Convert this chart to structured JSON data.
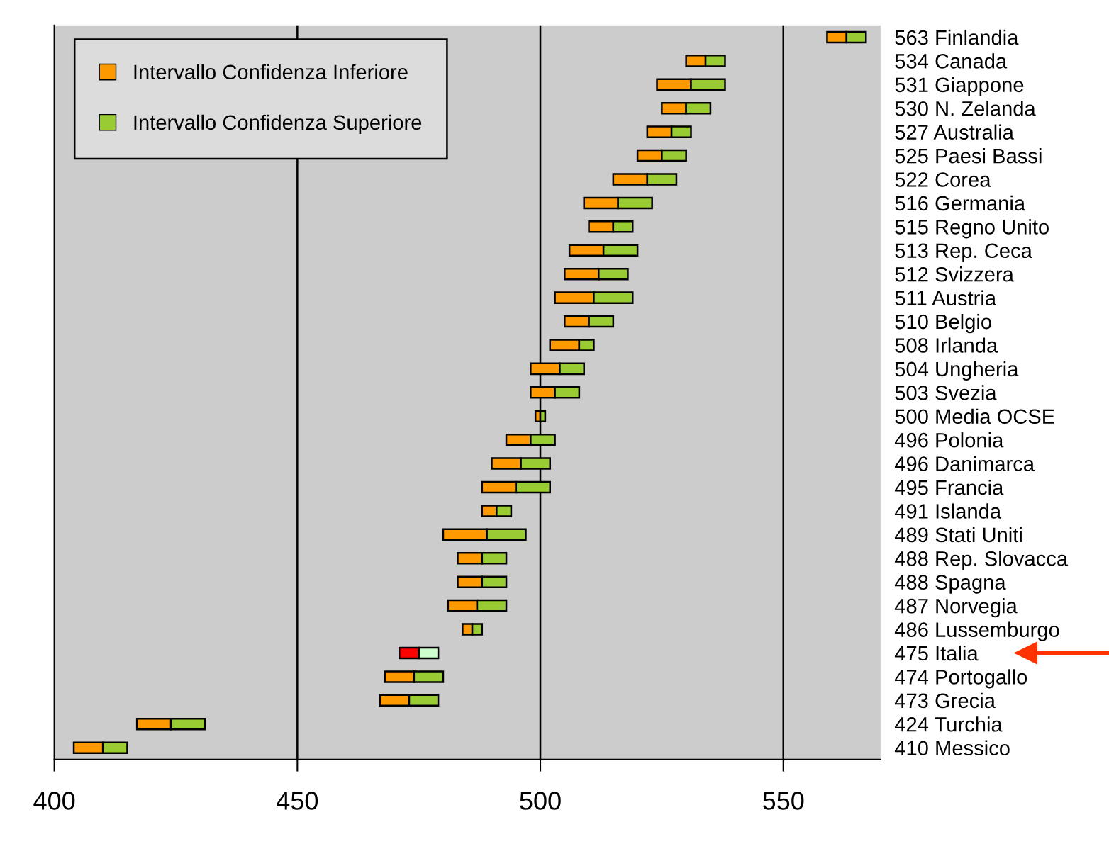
{
  "chart_data": {
    "type": "bar",
    "orientation": "horizontal",
    "categories": [
      "563 Finlandia",
      "534 Canada",
      "531 Giappone",
      "530 N. Zelanda",
      "527 Australia",
      "525 Paesi Bassi",
      "522 Corea",
      "516 Germania",
      "515 Regno Unito",
      "513 Rep. Ceca",
      "512 Svizzera",
      "511 Austria",
      "510 Belgio",
      "508 Irlanda",
      "504 Ungheria",
      "503 Svezia",
      "500 Media OCSE",
      "496 Polonia",
      "496 Danimarca",
      "495 Francia",
      "491 Islanda",
      "489 Stati Uniti",
      "488 Rep. Slovacca",
      "488 Spagna",
      "487 Norvegia",
      "486 Lussemburgo",
      "475 Italia",
      "474 Portogallo",
      "473 Grecia",
      "424 Turchia",
      "410 Messico"
    ],
    "series": [
      {
        "name": "Intervallo Confidenza Inferiore",
        "color": "#ff9900",
        "colors": [
          "#ff9900",
          "#ff9900",
          "#ff9900",
          "#ff9900",
          "#ff9900",
          "#ff9900",
          "#ff9900",
          "#ff9900",
          "#ff9900",
          "#ff9900",
          "#ff9900",
          "#ff9900",
          "#ff9900",
          "#ff9900",
          "#ff9900",
          "#ff9900",
          "#ff9900",
          "#ff9900",
          "#ff9900",
          "#ff9900",
          "#ff9900",
          "#ff9900",
          "#ff9900",
          "#ff9900",
          "#ff9900",
          "#ff9900",
          "#ff0000",
          "#ff9900",
          "#ff9900",
          "#ff9900",
          "#ff9900"
        ],
        "base": [
          559,
          530,
          524,
          525,
          522,
          520,
          515,
          509,
          510,
          506,
          505,
          503,
          505,
          502,
          498,
          498,
          499,
          493,
          490,
          488,
          488,
          480,
          483,
          483,
          481,
          484,
          471,
          468,
          467,
          417,
          404
        ],
        "values": [
          4,
          4,
          7,
          5,
          5,
          5,
          7,
          7,
          5,
          7,
          7,
          8,
          5,
          6,
          6,
          5,
          1,
          5,
          6,
          7,
          3,
          9,
          5,
          5,
          6,
          2,
          4,
          6,
          6,
          7,
          6
        ]
      },
      {
        "name": "Intervallo Confidenza Superiore",
        "color": "#99cc33",
        "colors": [
          "#99cc33",
          "#99cc33",
          "#99cc33",
          "#99cc33",
          "#99cc33",
          "#99cc33",
          "#99cc33",
          "#99cc33",
          "#99cc33",
          "#99cc33",
          "#99cc33",
          "#99cc33",
          "#99cc33",
          "#99cc33",
          "#99cc33",
          "#99cc33",
          "#99cc33",
          "#99cc33",
          "#99cc33",
          "#99cc33",
          "#99cc33",
          "#99cc33",
          "#99cc33",
          "#99cc33",
          "#99cc33",
          "#99cc33",
          "#ccffcc",
          "#99cc33",
          "#99cc33",
          "#99cc33",
          "#99cc33"
        ],
        "base": [
          563,
          534,
          531,
          530,
          527,
          525,
          522,
          516,
          515,
          513,
          512,
          511,
          510,
          508,
          504,
          503,
          500,
          498,
          496,
          495,
          491,
          489,
          488,
          488,
          487,
          486,
          475,
          474,
          473,
          424,
          410
        ],
        "values": [
          4,
          4,
          7,
          5,
          4,
          5,
          6,
          7,
          4,
          7,
          6,
          8,
          5,
          3,
          5,
          5,
          1,
          5,
          6,
          7,
          3,
          8,
          5,
          5,
          6,
          2,
          4,
          6,
          6,
          7,
          5
        ]
      }
    ],
    "xlim": [
      400,
      570
    ],
    "xticks": [
      400,
      450,
      500,
      550
    ],
    "grid": "x",
    "legend": "top left"
  }
}
